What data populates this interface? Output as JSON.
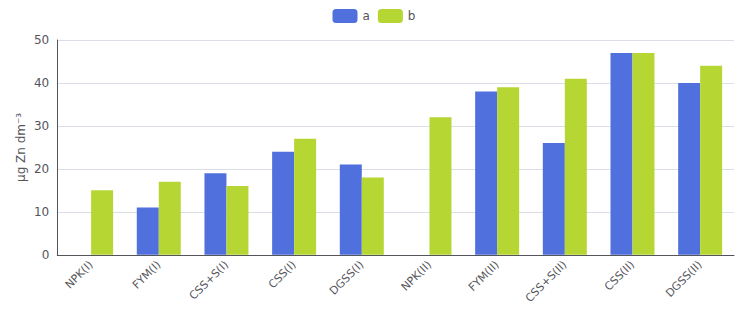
{
  "chart_data": {
    "type": "bar",
    "categories": [
      "NPK(I)",
      "FYM(I)",
      "CSS+S(I)",
      "CSS(I)",
      "DGSS(I)",
      "NPK(II)",
      "FYM(II)",
      "CSS+S(II)",
      "CSS(II)",
      "DGSS(II)"
    ],
    "series": [
      {
        "name": "a",
        "values": [
          0,
          11,
          19,
          24,
          21,
          0,
          38,
          26,
          47,
          40
        ]
      },
      {
        "name": "b",
        "values": [
          15,
          17,
          16,
          27,
          18,
          32,
          39,
          41,
          47,
          44
        ]
      }
    ],
    "ylabel": "μg Zn dm⁻³",
    "ylim": [
      0,
      50
    ],
    "yticks": [
      0,
      10,
      20,
      30,
      40,
      50
    ],
    "grid": true,
    "legend": "top"
  }
}
